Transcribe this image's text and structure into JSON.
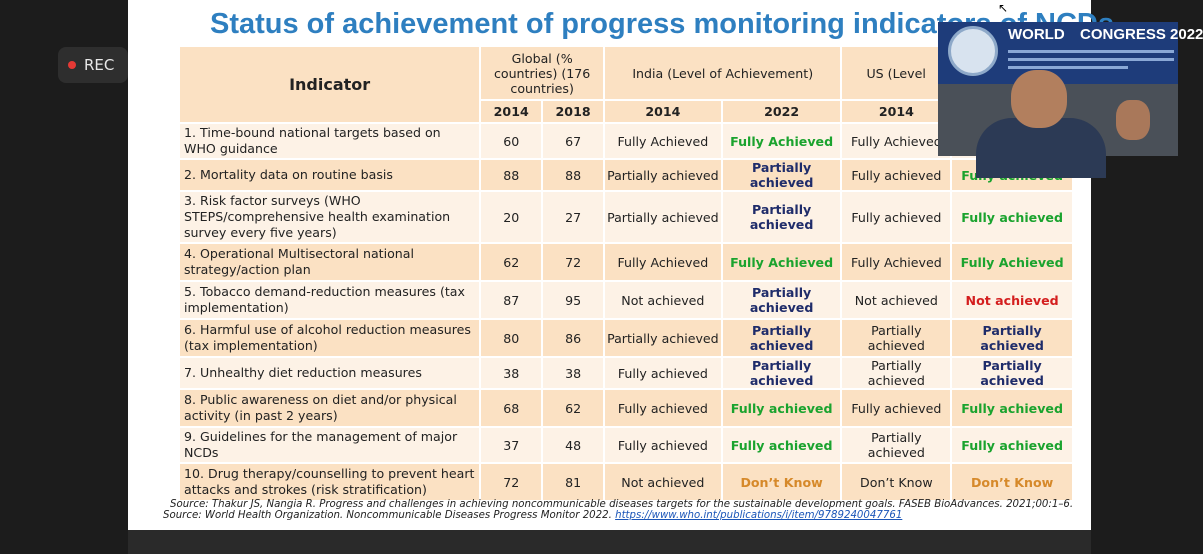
{
  "recorder": {
    "label": "REC"
  },
  "slide": {
    "title": "Status of achievement of progress monitoring indicators of NCDs",
    "header": {
      "indicator": "Indicator",
      "global": "Global (% countries) (176 countries)",
      "india": "India (Level of Achievement)",
      "us": "US (Level",
      "years": [
        "2014",
        "2018",
        "2014",
        "2022",
        "2014"
      ]
    },
    "rows": [
      {
        "indicator": "1. Time-bound national targets based on WHO guidance",
        "g2014": "60",
        "g2018": "67",
        "in2014": "Fully Achieved",
        "in2022": "Fully Achieved",
        "us2014": "Fully Achieved",
        "us2022": ""
      },
      {
        "indicator": "2. Mortality data on routine basis",
        "g2014": "88",
        "g2018": "88",
        "in2014": "Partially achieved",
        "in2022": "Partially achieved",
        "us2014": "Fully achieved",
        "us2022": "Fully achieved"
      },
      {
        "indicator": "3. Risk factor surveys (WHO STEPS/comprehensive health examination survey every five years)",
        "g2014": "20",
        "g2018": "27",
        "in2014": "Partially achieved",
        "in2022": "Partially achieved",
        "us2014": "Fully achieved",
        "us2022": "Fully achieved"
      },
      {
        "indicator": "4. Operational Multisectoral national strategy/action plan",
        "g2014": "62",
        "g2018": "72",
        "in2014": "Fully Achieved",
        "in2022": "Fully Achieved",
        "us2014": "Fully Achieved",
        "us2022": "Fully Achieved"
      },
      {
        "indicator": "5. Tobacco demand-reduction measures (tax implementation)",
        "g2014": "87",
        "g2018": "95",
        "in2014": "Not achieved",
        "in2022": "Partially achieved",
        "us2014": "Not achieved",
        "us2022": "Not achieved"
      },
      {
        "indicator": "6. Harmful use of alcohol reduction measures (tax implementation)",
        "g2014": "80",
        "g2018": "86",
        "in2014": "Partially achieved",
        "in2022": "Partially achieved",
        "us2014": "Partially achieved",
        "us2022": "Partially achieved"
      },
      {
        "indicator": "7. Unhealthy diet reduction measures",
        "g2014": "38",
        "g2018": "38",
        "in2014": "Fully achieved",
        "in2022": "Partially achieved",
        "us2014": "Partially achieved",
        "us2022": "Partially achieved"
      },
      {
        "indicator": "8. Public awareness on diet and/or physical activity (in past 2 years)",
        "g2014": "68",
        "g2018": "62",
        "in2014": "Fully achieved",
        "in2022": "Fully achieved",
        "us2014": "Fully achieved",
        "us2022": "Fully achieved"
      },
      {
        "indicator": "9. Guidelines for the management of major NCDs",
        "g2014": "37",
        "g2018": "48",
        "in2014": "Fully achieved",
        "in2022": "Fully achieved",
        "us2014": "Partially achieved",
        "us2022": "Fully achieved"
      },
      {
        "indicator": "10. Drug therapy/counselling to prevent heart attacks and strokes (risk stratification)",
        "g2014": "72",
        "g2018": "81",
        "in2014": "Not achieved",
        "in2022": "Don’t Know",
        "us2014": "Don’t Know",
        "us2022": "Don’t Know"
      }
    ],
    "sources": {
      "line1": "Source: Thakur JS, Nangia R. Progress and challenges in achieving noncommunicable diseases targets for the sustainable development goals. FASEB BioAdvances. 2021;00:1–6.",
      "line2_text": "Source: World Health Organization. Noncommunicable Diseases Progress Monitor 2022.",
      "line2_link": "https://www.who.int/publications/i/item/9789240047761"
    }
  },
  "video": {
    "banner_word": "WORLD",
    "banner_congress": "CONGRESS 2022"
  },
  "colors": {
    "title": "#2e7fc0",
    "row_dark": "#fbe1c3",
    "row_light": "#fdf2e6",
    "fully_achieved": "#1aa32e",
    "partially_achieved": "#1f2c6a",
    "not_achieved": "#d41e1e",
    "dont_know": "#d6892a"
  },
  "icons": {
    "recording": "red-dot-icon",
    "cursor": "mouse-pointer-icon"
  }
}
